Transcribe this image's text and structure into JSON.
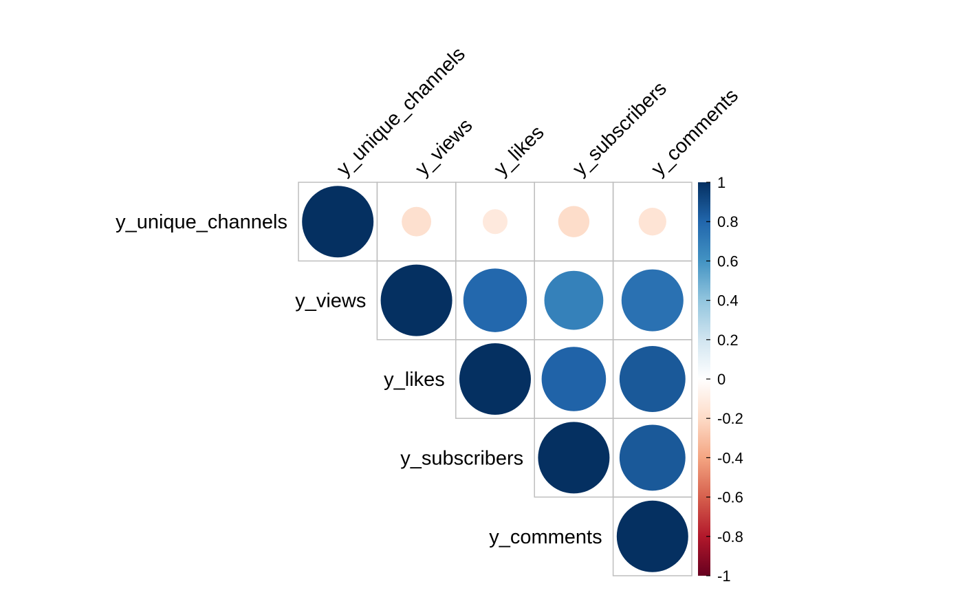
{
  "chart_data": {
    "type": "heatmap",
    "subtype": "correlation-circle-upper",
    "variables": [
      "y_unique_channels",
      "y_views",
      "y_likes",
      "y_subscribers",
      "y_comments"
    ],
    "matrix": [
      [
        1.0,
        -0.17,
        -0.12,
        -0.19,
        -0.15
      ],
      [
        -0.17,
        1.0,
        0.79,
        0.68,
        0.75
      ],
      [
        -0.12,
        0.79,
        1.0,
        0.81,
        0.85
      ],
      [
        -0.19,
        0.68,
        0.81,
        1.0,
        0.85
      ],
      [
        -0.15,
        0.75,
        0.85,
        0.85,
        1.0
      ]
    ],
    "colorbar": {
      "min": -1,
      "max": 1,
      "ticks": [
        1,
        0.8,
        0.6,
        0.4,
        0.2,
        0,
        -0.2,
        -0.4,
        -0.6,
        -0.8,
        -1
      ],
      "tick_labels": [
        "1",
        "0.8",
        "0.6",
        "0.4",
        "0.2",
        "0",
        "-0.2",
        "-0.4",
        "-0.6",
        "-0.8",
        "-1"
      ],
      "colors": [
        "#67001F",
        "#B2182B",
        "#D6604D",
        "#F4A582",
        "#FDDBC7",
        "#FFFFFF",
        "#D1E5F0",
        "#92C5DE",
        "#4393C3",
        "#2166AC",
        "#053061"
      ]
    },
    "grid": true,
    "legend": "right",
    "title": "",
    "xlabel": "",
    "ylabel": ""
  }
}
